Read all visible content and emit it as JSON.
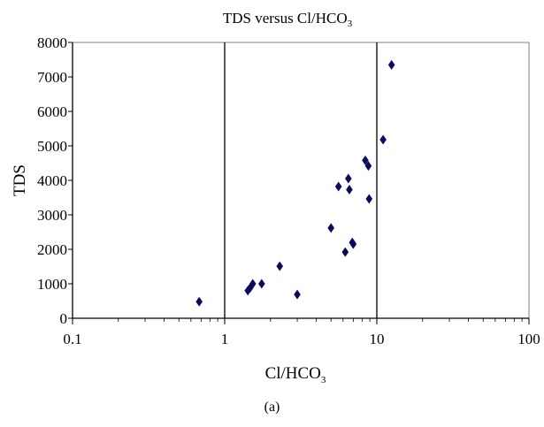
{
  "caption": "(a)",
  "chart_data": {
    "type": "scatter",
    "title": {
      "main": "TDS versus Cl/HCO",
      "sub": "3"
    },
    "xlabel": {
      "main": "Cl/HCO",
      "sub": "3"
    },
    "ylabel": "TDS",
    "x_scale": "log",
    "xlim": [
      0.1,
      100
    ],
    "ylim": [
      0,
      8000
    ],
    "x_ticks": [
      "0.1",
      "1",
      "10",
      "100"
    ],
    "y_ticks": [
      "0",
      "1000",
      "2000",
      "3000",
      "4000",
      "5000",
      "6000",
      "7000",
      "8000"
    ],
    "vertical_lines": [
      1,
      10
    ],
    "marker": "diamond",
    "marker_color": "#0b0b5e",
    "points": [
      {
        "x": 0.68,
        "y": 480
      },
      {
        "x": 1.42,
        "y": 800
      },
      {
        "x": 1.47,
        "y": 880
      },
      {
        "x": 1.53,
        "y": 1000
      },
      {
        "x": 1.75,
        "y": 1000
      },
      {
        "x": 2.3,
        "y": 1510
      },
      {
        "x": 3.0,
        "y": 690
      },
      {
        "x": 5.0,
        "y": 2620
      },
      {
        "x": 5.6,
        "y": 3820
      },
      {
        "x": 6.2,
        "y": 1920
      },
      {
        "x": 6.5,
        "y": 4050
      },
      {
        "x": 6.6,
        "y": 3730
      },
      {
        "x": 6.9,
        "y": 2200
      },
      {
        "x": 7.0,
        "y": 2150
      },
      {
        "x": 8.4,
        "y": 4580
      },
      {
        "x": 8.8,
        "y": 4420
      },
      {
        "x": 8.9,
        "y": 3460
      },
      {
        "x": 11.0,
        "y": 5180
      },
      {
        "x": 12.5,
        "y": 7350
      }
    ]
  }
}
